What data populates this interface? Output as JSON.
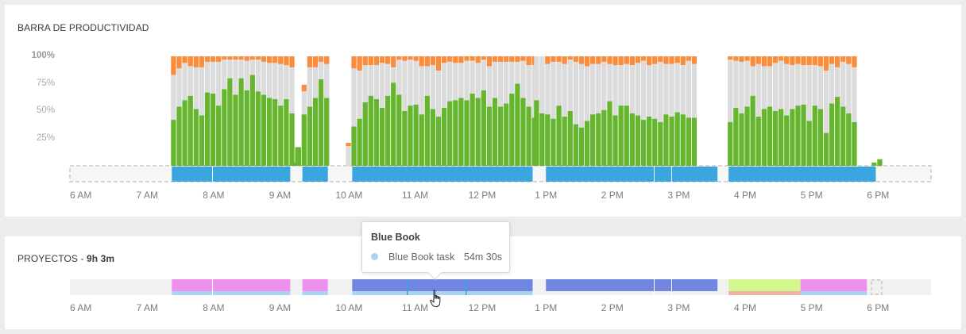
{
  "productivity": {
    "title": "BARRA DE PRODUCTIVIDAD",
    "y_ticks": [
      "100%",
      "75%",
      "50%",
      "25%"
    ],
    "x_ticks": [
      "6 AM",
      "7 AM",
      "8 AM",
      "9 AM",
      "10 AM",
      "11 AM",
      "12 PM",
      "1 PM",
      "2 PM",
      "3 PM",
      "4 PM",
      "5 PM",
      "6 PM"
    ],
    "colors": {
      "productive": "#66b52e",
      "neutral": "#dcdcdc",
      "distracting": "#fa8c3c",
      "active": "#3ba5e0",
      "idle_border": "#c8c8c8"
    }
  },
  "projects": {
    "title": "PROYECTOS",
    "total": "9h 3m",
    "x_ticks": [
      "6 AM",
      "7 AM",
      "8 AM",
      "9 AM",
      "10 AM",
      "11 AM",
      "12 PM",
      "1 PM",
      "2 PM",
      "3 PM",
      "4 PM",
      "5 PM",
      "6 PM"
    ],
    "colors": {
      "pink": "#ee90ee",
      "blue": "#7086e0",
      "green": "#d5f78f",
      "salmon": "#f3b0a8",
      "light_blue": "#a8d4ef",
      "track": "#f1f1f1"
    }
  },
  "tooltip": {
    "title": "Blue Book",
    "item_label": "Blue Book task",
    "item_value": "54m 30s",
    "dot_color": "#a8d4ef"
  },
  "chart_data": {
    "type": "bar",
    "title": "BARRA DE PRODUCTIVIDAD",
    "xlabel": "",
    "ylabel": "",
    "ylim": [
      0,
      100
    ],
    "stacking": "percent",
    "series_order": [
      "productive",
      "neutral",
      "distracting"
    ],
    "segments": [
      {
        "start": "7:22",
        "bars": [
          [
            42,
            41,
            17
          ],
          [
            54,
            35,
            11
          ],
          [
            60,
            34,
            6
          ],
          [
            64,
            27,
            9
          ],
          [
            52,
            38,
            10
          ],
          [
            46,
            44,
            10
          ],
          [
            67,
            28,
            5
          ],
          [
            66,
            29,
            5
          ],
          [
            55,
            40,
            5
          ],
          [
            70,
            27,
            3
          ],
          [
            80,
            17,
            3
          ],
          [
            65,
            32,
            3
          ],
          [
            80,
            17,
            3
          ],
          [
            69,
            27,
            4
          ],
          [
            83,
            14,
            3
          ],
          [
            68,
            29,
            3
          ],
          [
            65,
            30,
            5
          ],
          [
            62,
            32,
            6
          ],
          [
            61,
            33,
            6
          ],
          [
            55,
            38,
            7
          ],
          [
            61,
            31,
            8
          ],
          [
            48,
            42,
            10
          ],
          [
            17,
            0,
            0
          ]
        ]
      },
      {
        "start": "9:11",
        "bars": [
          [
            3,
            0,
            0
          ]
        ]
      },
      {
        "start": "9:15",
        "bars": [
          [
            17,
            0,
            0
          ]
        ]
      },
      {
        "start": "9:20",
        "bars": [
          [
            47,
            21,
            6
          ],
          [
            54,
            36,
            10
          ],
          [
            62,
            28,
            10
          ],
          [
            79,
            16,
            5
          ],
          [
            62,
            31,
            7
          ]
        ]
      },
      {
        "start": "10:00",
        "bars": [
          [
            0,
            18,
            3
          ]
        ]
      },
      {
        "start": "10:05",
        "bars": [
          [
            36,
            53,
            11
          ],
          [
            43,
            44,
            13
          ],
          [
            58,
            34,
            8
          ],
          [
            64,
            28,
            8
          ],
          [
            61,
            31,
            8
          ],
          [
            53,
            41,
            6
          ],
          [
            64,
            29,
            7
          ],
          [
            76,
            14,
            10
          ],
          [
            65,
            32,
            3
          ],
          [
            50,
            46,
            4
          ],
          [
            55,
            42,
            3
          ],
          [
            56,
            40,
            4
          ],
          [
            47,
            44,
            9
          ],
          [
            64,
            27,
            9
          ],
          [
            52,
            40,
            8
          ],
          [
            45,
            42,
            13
          ],
          [
            53,
            41,
            6
          ],
          [
            59,
            36,
            5
          ],
          [
            60,
            34,
            6
          ],
          [
            62,
            32,
            6
          ],
          [
            60,
            36,
            4
          ],
          [
            66,
            30,
            4
          ],
          [
            62,
            32,
            6
          ],
          [
            69,
            28,
            3
          ],
          [
            54,
            37,
            9
          ],
          [
            62,
            33,
            5
          ],
          [
            54,
            41,
            5
          ],
          [
            57,
            38,
            5
          ],
          [
            66,
            29,
            5
          ],
          [
            75,
            20,
            5
          ],
          [
            62,
            34,
            4
          ],
          [
            54,
            38,
            8
          ],
          [
            44,
            48,
            8
          ]
        ]
      },
      {
        "start": "12:50",
        "bars": [
          [
            60,
            40,
            0
          ]
        ]
      },
      {
        "start": "12:55",
        "bars": [
          [
            48,
            52,
            0
          ]
        ]
      },
      {
        "start": "13:00",
        "bars": [
          [
            47,
            46,
            7
          ],
          [
            43,
            52,
            5
          ],
          [
            55,
            40,
            5
          ],
          [
            45,
            48,
            7
          ],
          [
            50,
            47,
            3
          ],
          [
            38,
            57,
            5
          ],
          [
            35,
            58,
            7
          ],
          [
            41,
            50,
            9
          ],
          [
            47,
            46,
            7
          ],
          [
            48,
            45,
            7
          ],
          [
            51,
            44,
            5
          ],
          [
            59,
            34,
            7
          ],
          [
            46,
            46,
            8
          ],
          [
            55,
            37,
            8
          ],
          [
            55,
            38,
            7
          ],
          [
            48,
            44,
            8
          ],
          [
            46,
            48,
            6
          ],
          [
            42,
            54,
            4
          ],
          [
            45,
            47,
            8
          ],
          [
            43,
            50,
            7
          ],
          [
            40,
            55,
            5
          ],
          [
            47,
            46,
            7
          ],
          [
            45,
            48,
            7
          ],
          [
            49,
            45,
            6
          ],
          [
            47,
            45,
            8
          ],
          [
            44,
            52,
            4
          ],
          [
            44,
            49,
            7
          ]
        ]
      },
      {
        "start": "15:45",
        "bars": [
          [
            40,
            57,
            3
          ],
          [
            53,
            43,
            4
          ],
          [
            48,
            47,
            5
          ],
          [
            54,
            42,
            4
          ],
          [
            64,
            27,
            9
          ],
          [
            45,
            48,
            7
          ],
          [
            52,
            39,
            9
          ],
          [
            54,
            37,
            9
          ],
          [
            50,
            44,
            6
          ],
          [
            52,
            44,
            4
          ],
          [
            46,
            47,
            7
          ],
          [
            52,
            40,
            8
          ],
          [
            55,
            38,
            7
          ],
          [
            56,
            36,
            8
          ],
          [
            41,
            51,
            8
          ],
          [
            55,
            37,
            8
          ],
          [
            52,
            39,
            9
          ],
          [
            30,
            57,
            13
          ],
          [
            57,
            36,
            7
          ],
          [
            63,
            27,
            10
          ],
          [
            54,
            41,
            5
          ],
          [
            48,
            45,
            7
          ],
          [
            40,
            50,
            10
          ]
        ]
      },
      {
        "start": "17:55",
        "bars": [
          [
            3,
            0,
            0
          ],
          [
            6,
            0,
            0
          ]
        ]
      }
    ],
    "active_time": [
      {
        "from": "7:22",
        "to": "9:09"
      },
      {
        "from": "9:20",
        "to": "9:43"
      },
      {
        "from": "10:05",
        "to": "12:48"
      },
      {
        "from": "13:00",
        "to": "15:35"
      },
      {
        "from": "15:45",
        "to": "17:58"
      }
    ]
  },
  "project_blocks": [
    {
      "from": "7:22",
      "to": "9:09",
      "color": "pink",
      "under": "light_blue"
    },
    {
      "from": "9:20",
      "to": "9:43",
      "color": "pink",
      "under": "light_blue"
    },
    {
      "from": "10:05",
      "to": "12:48",
      "color": "blue",
      "under": "light_blue"
    },
    {
      "from": "13:00",
      "to": "15:35",
      "color": "blue",
      "under": "none"
    },
    {
      "from": "15:45",
      "to": "16:50",
      "color": "green",
      "under": "salmon"
    },
    {
      "from": "16:50",
      "to": "17:50",
      "color": "pink",
      "under": "light_blue"
    }
  ]
}
